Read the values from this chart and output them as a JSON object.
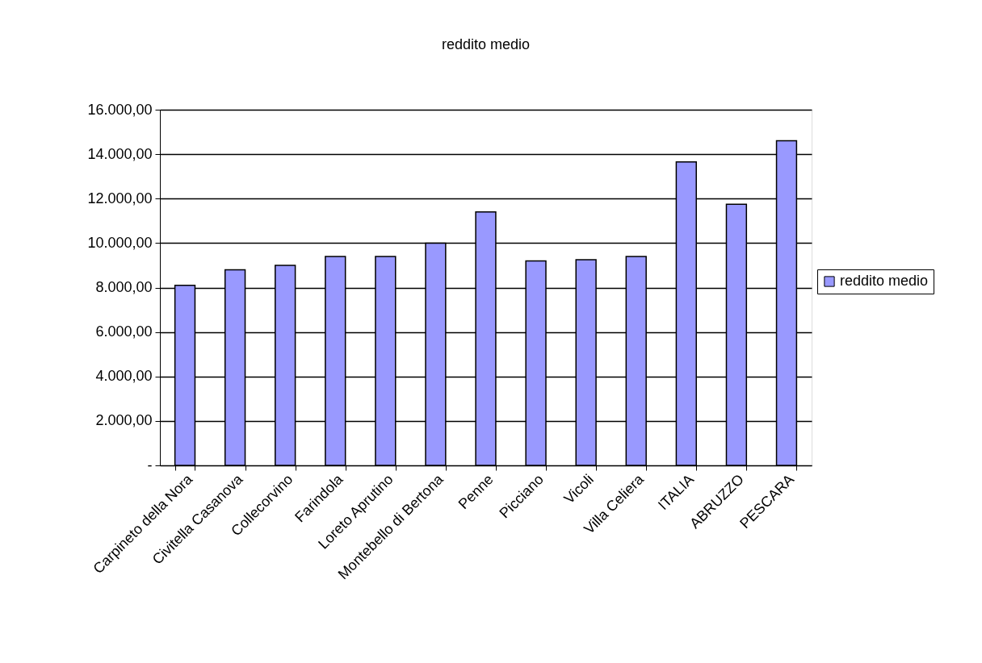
{
  "chart_data": {
    "type": "bar",
    "title": "reddito medio",
    "categories": [
      "Carpineto della Nora",
      "Civitella Casanova",
      "Collecorvino",
      "Farindola",
      "Loreto Aprutino",
      "Montebello di Bertona",
      "Penne",
      "Picciano",
      "Vicoli",
      "Villa Celiera",
      "ITALIA",
      "ABRUZZO",
      "PESCARA"
    ],
    "series": [
      {
        "name": "reddito medio",
        "color": "#9999ff",
        "values": [
          8100,
          8800,
          9000,
          9400,
          9400,
          10000,
          11400,
          9200,
          9250,
          9400,
          13650,
          11750,
          14600
        ]
      }
    ],
    "ylim": [
      0,
      16000
    ],
    "yticks": [
      {
        "value": 0,
        "label": "-"
      },
      {
        "value": 2000,
        "label": "2.000,00"
      },
      {
        "value": 4000,
        "label": "4.000,00"
      },
      {
        "value": 6000,
        "label": "6.000,00"
      },
      {
        "value": 8000,
        "label": "8.000,00"
      },
      {
        "value": 10000,
        "label": "10.000,00"
      },
      {
        "value": 12000,
        "label": "12.000,00"
      },
      {
        "value": 14000,
        "label": "14.000,00"
      },
      {
        "value": 16000,
        "label": "16.000,00"
      }
    ],
    "grid": "y",
    "legend": "right"
  }
}
